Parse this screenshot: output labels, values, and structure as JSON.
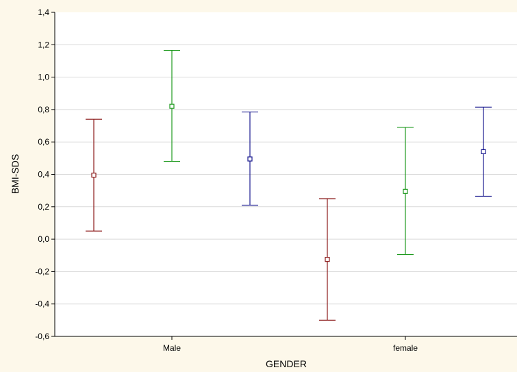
{
  "chart_data": {
    "type": "errorbar",
    "xlabel": "GENDER",
    "ylabel": "BMI-SDS",
    "ylim": [
      -0.6,
      1.4
    ],
    "yticks": [
      -0.6,
      -0.4,
      -0.2,
      0.0,
      0.2,
      0.4,
      0.6,
      0.8,
      1.0,
      1.2,
      1.4
    ],
    "ytick_labels": [
      "-0,6",
      "-0,4",
      "-0,2",
      "0,0",
      "0,2",
      "0,4",
      "0,6",
      "0,8",
      "1,0",
      "1,2",
      "1,4"
    ],
    "categories": [
      "Male",
      "female"
    ],
    "grid": true,
    "series": [
      {
        "color": "#8b1a1a",
        "points": [
          {
            "category": "Male",
            "mean": 0.395,
            "lower": 0.05,
            "upper": 0.74
          },
          {
            "category": "female",
            "mean": -0.125,
            "lower": -0.5,
            "upper": 0.25
          }
        ]
      },
      {
        "color": "#1e9a1e",
        "points": [
          {
            "category": "Male",
            "mean": 0.82,
            "lower": 0.48,
            "upper": 1.165
          },
          {
            "category": "female",
            "mean": 0.295,
            "lower": -0.095,
            "upper": 0.69
          }
        ]
      },
      {
        "color": "#1a1a8f",
        "points": [
          {
            "category": "Male",
            "mean": 0.495,
            "lower": 0.21,
            "upper": 0.785
          },
          {
            "category": "female",
            "mean": 0.54,
            "lower": 0.265,
            "upper": 0.815
          }
        ]
      }
    ]
  }
}
